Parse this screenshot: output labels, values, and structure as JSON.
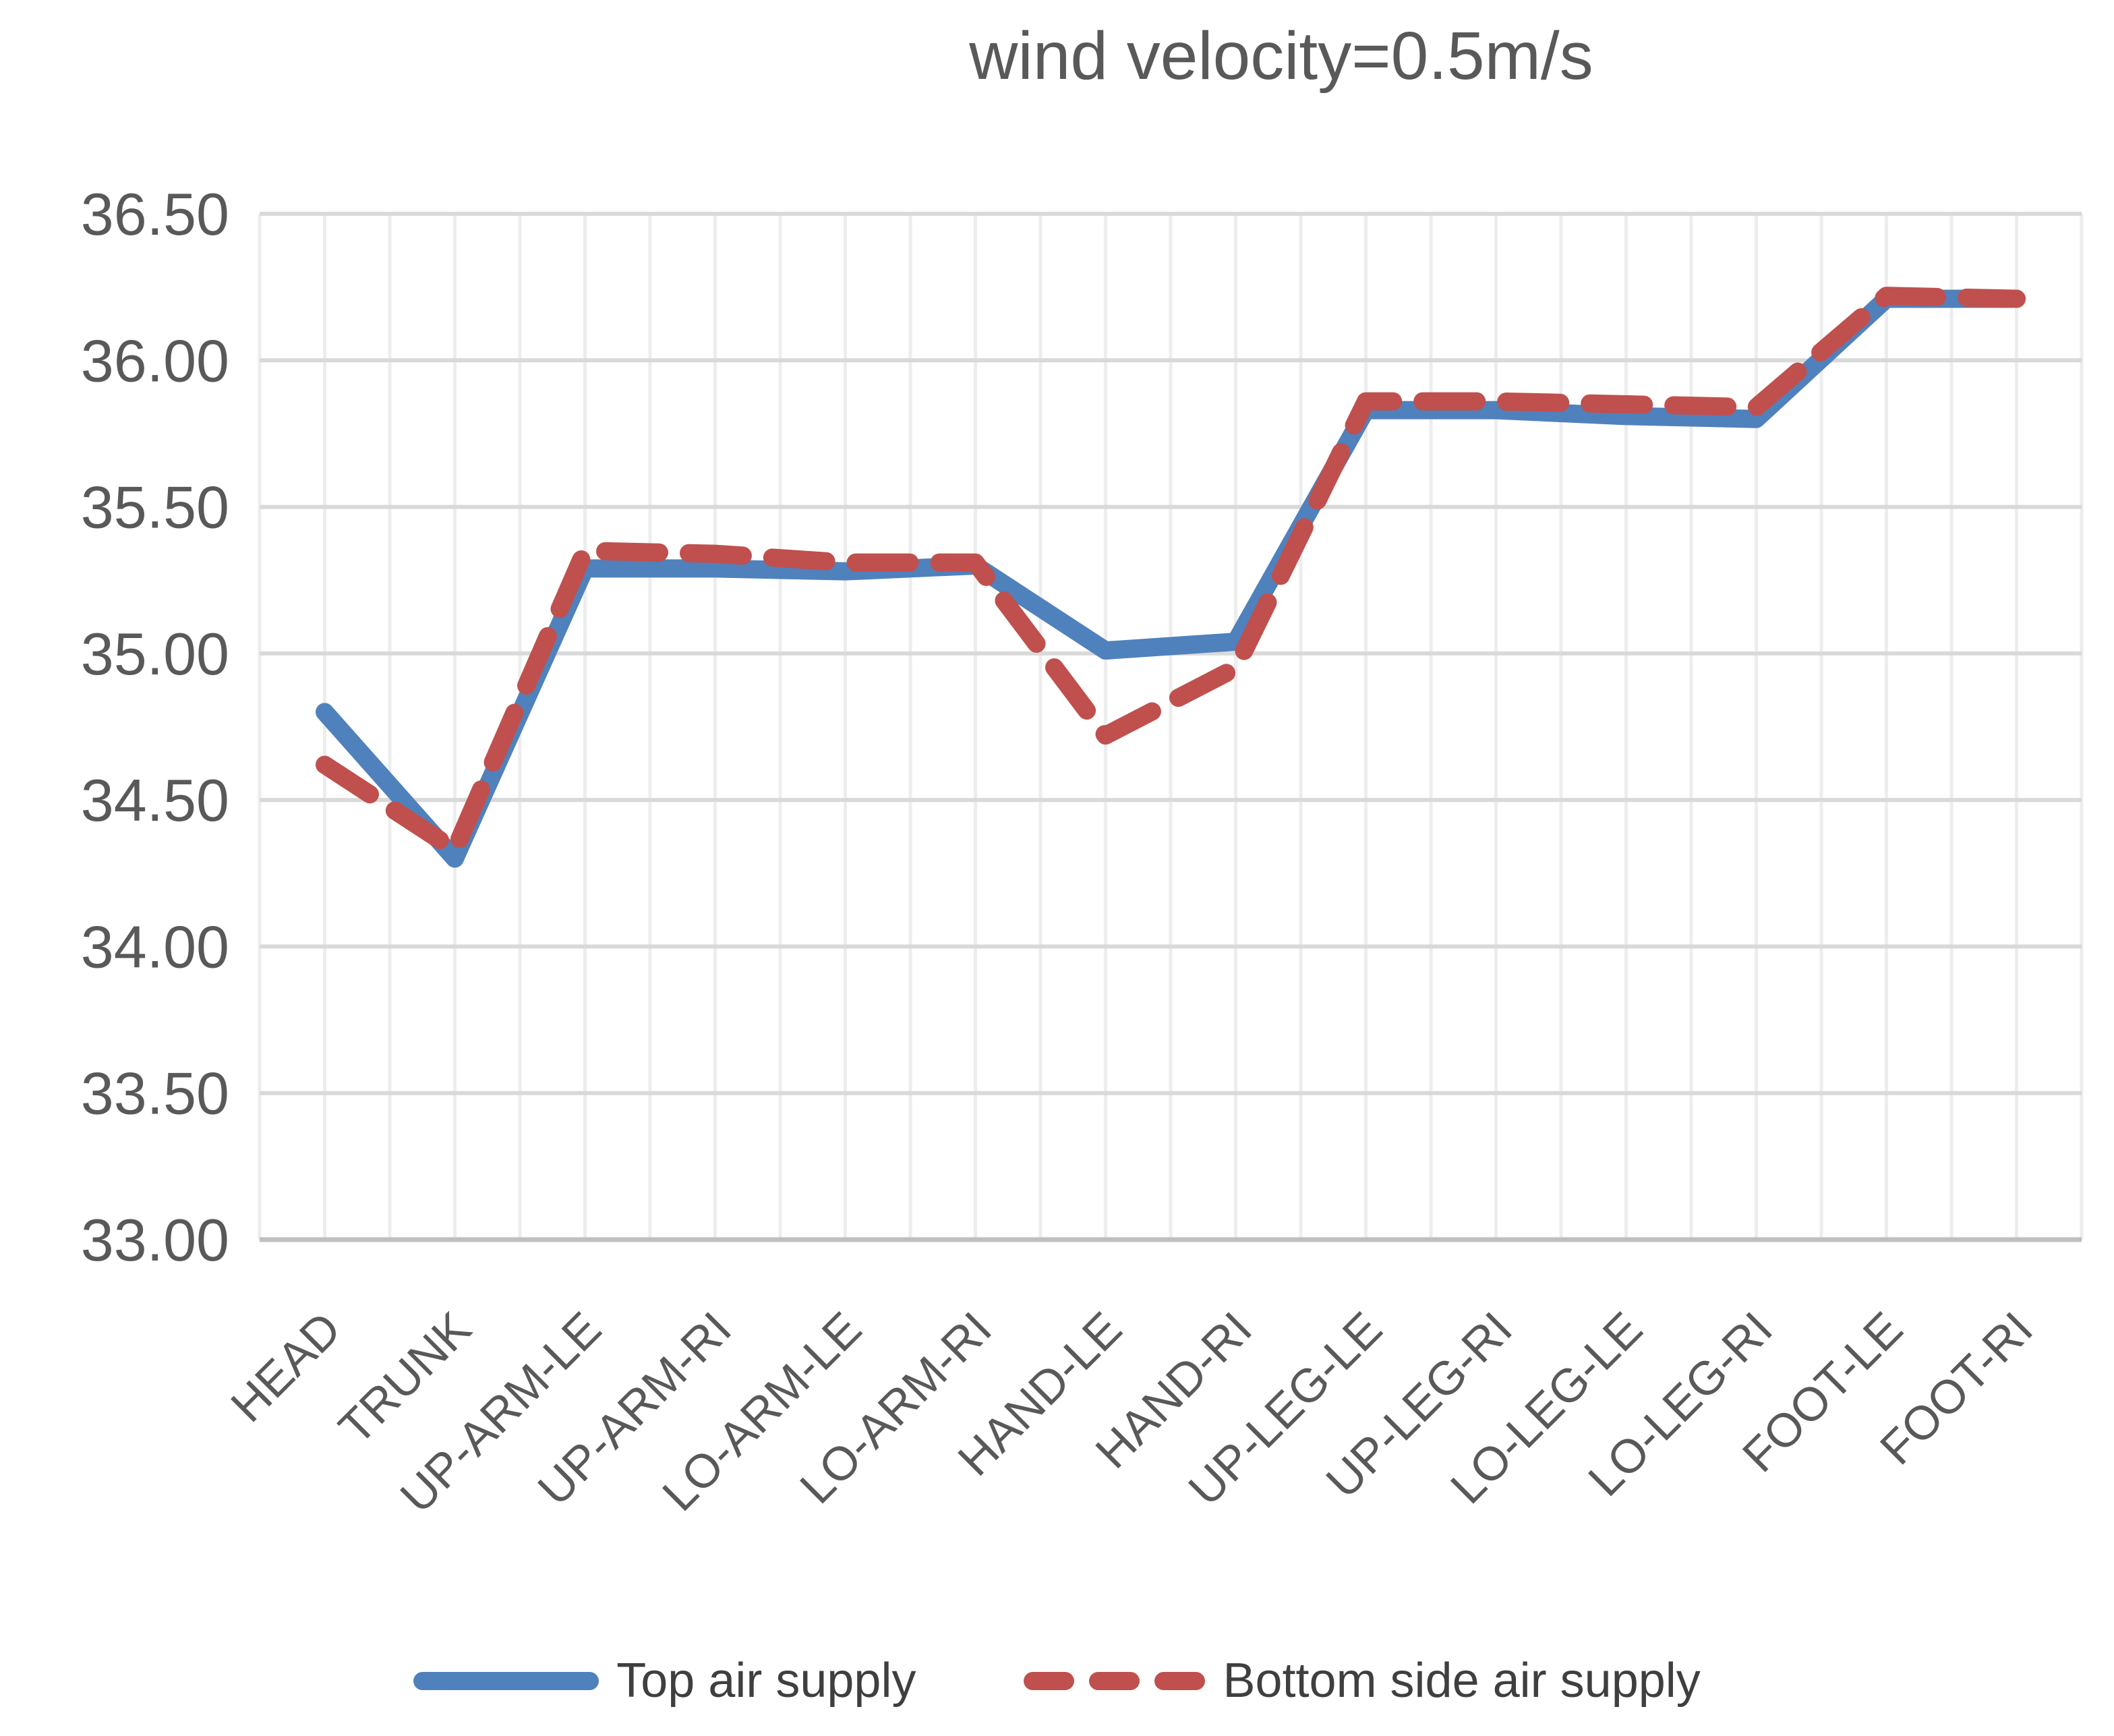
{
  "title": {
    "text": "wind velocity=0.5m/s"
  },
  "legend": {
    "items": [
      {
        "label": "Top air supply"
      },
      {
        "label": "Bottom side air supply"
      }
    ]
  },
  "chart_data": {
    "type": "line",
    "title": "wind velocity=0.5m/s",
    "categories": [
      "HEAD",
      "TRUNK",
      "UP-ARM-LE",
      "UP-ARM-RI",
      "LO-ARM-LE",
      "LO-ARM-RI",
      "HAND-LE",
      "HAND-RI",
      "UP-LEG-LE",
      "UP-LEG-RI",
      "LO-LEG-LE",
      "LO-LEG-RI",
      "FOOT-LE",
      "FOOT-RI"
    ],
    "series": [
      {
        "name": "Top air supply",
        "style": "solid",
        "color": "#4f81bd",
        "values": [
          34.8,
          34.3,
          35.29,
          35.29,
          35.28,
          35.3,
          35.01,
          35.04,
          35.83,
          35.83,
          35.81,
          35.8,
          36.21,
          36.21
        ]
      },
      {
        "name": "Bottom side air supply",
        "style": "dashed",
        "color": "#c0504d",
        "values": [
          34.62,
          34.33,
          35.35,
          35.34,
          35.31,
          35.31,
          34.72,
          34.95,
          35.86,
          35.86,
          35.85,
          35.84,
          36.22,
          36.21
        ]
      }
    ],
    "ylim": [
      33.0,
      36.5
    ],
    "ytick_step": 0.5,
    "ytick_labels": [
      "36.50",
      "36.00",
      "35.50",
      "35.00",
      "34.50",
      "34.00",
      "33.50",
      "33.00"
    ],
    "grid": {
      "horizontal": true,
      "vertical": true
    },
    "legend_position": "bottom",
    "text_color": "#595959",
    "gridline_color": "#d9d9d9",
    "minor_gridline_color": "#ededed",
    "axis_line_color": "#bfbfbf"
  }
}
